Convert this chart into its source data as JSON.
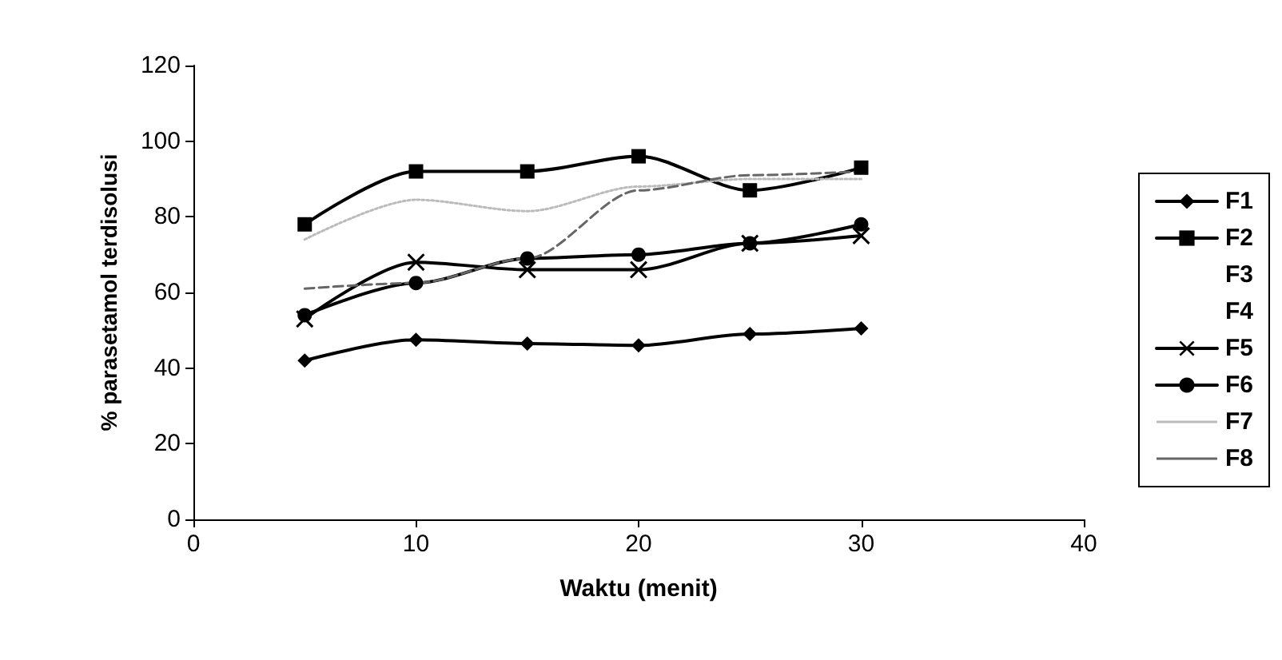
{
  "chart_data": {
    "type": "line",
    "xlabel": "Waktu (menit)",
    "ylabel": "% parasetamol terdisolusi",
    "x": [
      5,
      10,
      15,
      20,
      25,
      30
    ],
    "series": [
      {
        "name": "F1",
        "color": "#000000",
        "marker": "diamond",
        "values": [
          42,
          47.5,
          46.5,
          46,
          49,
          50.5
        ]
      },
      {
        "name": "F2",
        "color": "#000000",
        "marker": "square",
        "values": [
          78,
          92,
          92,
          96,
          87,
          93
        ]
      },
      {
        "name": "F3",
        "marker": "none",
        "values": [
          null,
          null,
          null,
          null,
          null,
          null
        ]
      },
      {
        "name": "F4",
        "marker": "none",
        "values": [
          null,
          null,
          null,
          null,
          null,
          null
        ]
      },
      {
        "name": "F5",
        "color": "#000000",
        "marker": "cross",
        "values": [
          53,
          68,
          66,
          66,
          73,
          75
        ]
      },
      {
        "name": "F6",
        "color": "#000000",
        "marker": "circle",
        "values": [
          54,
          62.5,
          69,
          70,
          73,
          78
        ]
      },
      {
        "name": "F7",
        "color": "#bbbbbb",
        "marker": "none",
        "line_style": "dotted",
        "values": [
          74,
          84.5,
          81.5,
          88,
          90,
          90
        ]
      },
      {
        "name": "F8",
        "color": "#666666",
        "marker": "none",
        "line_style": "dashed",
        "values": [
          61,
          62.5,
          69,
          87,
          91,
          92
        ]
      }
    ],
    "xlim": [
      0,
      40
    ],
    "xticks": [
      0,
      10,
      20,
      30,
      40
    ],
    "ylim": [
      0,
      120
    ],
    "yticks": [
      0,
      20,
      40,
      60,
      80,
      100,
      120
    ],
    "grid": false,
    "legend": "right"
  }
}
